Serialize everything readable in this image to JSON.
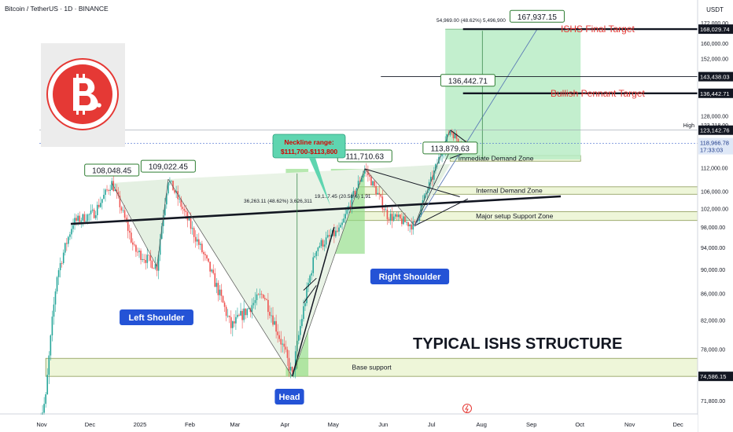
{
  "header": {
    "title": "Bitcoin / TetherUS · 1D · BINANCE"
  },
  "axis": {
    "currency": "USDT",
    "ticks": [
      "172,000.00",
      "160,000.00",
      "152,000.00",
      "144,000.00",
      "128,000.00",
      "112,000.00",
      "106,000.00",
      "102,000.00",
      "98,000.00",
      "94,000.00",
      "90,000.00",
      "86,000.00",
      "82,000.00",
      "78,000.00",
      "71,800.00"
    ],
    "months": [
      "Nov",
      "Dec",
      "2025",
      "Feb",
      "Mar",
      "Apr",
      "May",
      "Jun",
      "Jul",
      "Aug",
      "Sep",
      "Oct",
      "Nov",
      "Dec"
    ],
    "badges": [
      {
        "label": "168,029.74",
        "price": 168029.74,
        "bg": "#131722",
        "fg": "#ffffff"
      },
      {
        "label": "143,438.03",
        "price": 143438.03,
        "bg": "#131722",
        "fg": "#ffffff"
      },
      {
        "label": "136,442.71",
        "price": 136442.71,
        "bg": "#131722",
        "fg": "#ffffff"
      },
      {
        "label": "123,142.76",
        "price": 123142.76,
        "bg": "#131722",
        "fg": "#ffffff"
      },
      {
        "label": "74,586.15",
        "price": 74586.15,
        "bg": "#131722",
        "fg": "#ffffff"
      }
    ],
    "current": {
      "label": "118,966.78",
      "time": "17:33:03",
      "price": 118966.78,
      "bg": "#dfe8f7",
      "fg": "#1e3a8a"
    },
    "high_tick": "123,218.00",
    "high_label": "High"
  },
  "price_labels": [
    {
      "text": "108,048.45",
      "price": 108048.45,
      "date": "2024-12-16"
    },
    {
      "text": "109,022.45",
      "price": 109022.45,
      "date": "2025-01-20"
    },
    {
      "text": "111,710.63",
      "price": 111710.63,
      "date": "2025-05-22"
    },
    {
      "text": "113,879.63",
      "price": 113879.63,
      "date": "2025-07-14"
    },
    {
      "text": "136,442.71",
      "price": 136442.71,
      "date": "2025-07-25"
    },
    {
      "text": "167,937.15",
      "price": 167937.15,
      "date": "2025-09-06"
    }
  ],
  "pattern_labels": {
    "left": "Left Shoulder",
    "head": "Head",
    "right": "Right Shoulder",
    "neckline_1": "Neckline range:",
    "neckline_2": "$111,700-$113,800"
  },
  "zones": [
    {
      "label": "Immediate Demand Zone",
      "low": 113800,
      "high": 115400,
      "start": "2025-07-14",
      "end": "2025-10-03"
    },
    {
      "label": "Internal Demand Zone",
      "low": 105300,
      "high": 107100,
      "start": "2025-05-17",
      "end": "2025-12-31"
    },
    {
      "label": "Major setup Support Zone",
      "low": 99400,
      "high": 101300,
      "start": "2025-04-25",
      "end": "2025-12-31"
    },
    {
      "label": "Base support",
      "low": 74586,
      "high": 76800,
      "start": "2024-11-05",
      "end": "2025-12-31"
    }
  ],
  "targets": [
    {
      "label": "ISHS Final Target",
      "price": 168029.74
    },
    {
      "label": "Bullish Pennant Target",
      "price": 136442.71
    }
  ],
  "measures": [
    {
      "text": "36,263.11 (48.62%) 3,626,311"
    },
    {
      "text": "19,1..7.45 (20.58%) 1,91"
    },
    {
      "text": "54,969.00 (48.62%) 5,496,900"
    }
  ],
  "headline": "TYPICAL ISHS STRUCTURE",
  "chart_data": {
    "type": "line",
    "title": "TYPICAL ISHS STRUCTURE",
    "xlabel": "",
    "ylabel": "",
    "x_range": [
      "2024-10-28",
      "2025-12-31"
    ],
    "ylim": [
      69000,
      174000
    ],
    "grid": false,
    "series": [
      {
        "values": [
          {
            "x": "2024-11-01",
            "y": 69500
          },
          {
            "x": "2024-11-05",
            "y": 72000
          },
          {
            "x": "2024-11-12",
            "y": 89000
          },
          {
            "x": "2024-11-22",
            "y": 99000
          },
          {
            "x": "2024-12-05",
            "y": 101000
          },
          {
            "x": "2024-12-16",
            "y": 108048
          },
          {
            "x": "2024-12-30",
            "y": 93500
          },
          {
            "x": "2025-01-13",
            "y": 90500
          },
          {
            "x": "2025-01-20",
            "y": 109022
          },
          {
            "x": "2025-02-03",
            "y": 98000
          },
          {
            "x": "2025-02-28",
            "y": 81000
          },
          {
            "x": "2025-03-20",
            "y": 86000
          },
          {
            "x": "2025-04-07",
            "y": 74586
          },
          {
            "x": "2025-04-22",
            "y": 94000
          },
          {
            "x": "2025-05-07",
            "y": 97500
          },
          {
            "x": "2025-05-22",
            "y": 111710
          },
          {
            "x": "2025-06-05",
            "y": 100500
          },
          {
            "x": "2025-06-22",
            "y": 98300
          },
          {
            "x": "2025-07-03",
            "y": 109500
          },
          {
            "x": "2025-07-14",
            "y": 123218
          },
          {
            "x": "2025-07-21",
            "y": 118500
          },
          {
            "x": "2025-07-25",
            "y": 118966.78
          }
        ]
      }
    ]
  }
}
